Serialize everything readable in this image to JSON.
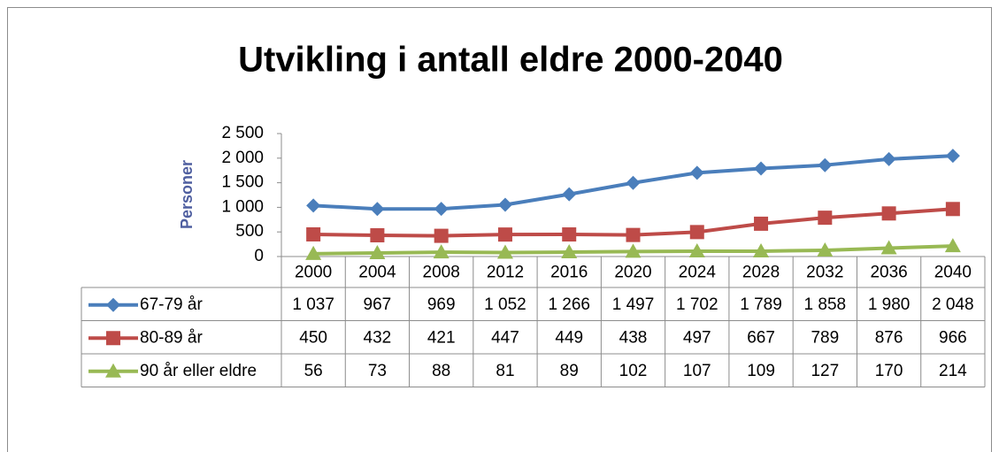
{
  "chart_data": {
    "type": "line",
    "title": "Utvikling i antall eldre 2000-2040",
    "y_label": "Personer",
    "categories": [
      "2000",
      "2004",
      "2008",
      "2012",
      "2016",
      "2020",
      "2024",
      "2028",
      "2032",
      "2036",
      "2040"
    ],
    "series": [
      {
        "name": "67-79 år",
        "color": "#4a7ebb",
        "marker": "diamond",
        "values": [
          1037,
          967,
          969,
          1052,
          1266,
          1497,
          1702,
          1789,
          1858,
          1980,
          2048
        ],
        "value_labels": [
          "1 037",
          "967",
          "969",
          "1 052",
          "1 266",
          "1 497",
          "1 702",
          "1 789",
          "1 858",
          "1 980",
          "2 048"
        ]
      },
      {
        "name": "80-89 år",
        "color": "#be4b48",
        "marker": "square",
        "values": [
          450,
          432,
          421,
          447,
          449,
          438,
          497,
          667,
          789,
          876,
          966
        ],
        "value_labels": [
          "450",
          "432",
          "421",
          "447",
          "449",
          "438",
          "497",
          "667",
          "789",
          "876",
          "966"
        ]
      },
      {
        "name": "90 år eller eldre",
        "color": "#98b954",
        "marker": "triangle",
        "values": [
          56,
          73,
          88,
          81,
          89,
          102,
          107,
          109,
          127,
          170,
          214
        ],
        "value_labels": [
          "56",
          "73",
          "88",
          "81",
          "89",
          "102",
          "107",
          "109",
          "127",
          "170",
          "214"
        ]
      }
    ],
    "ylim": [
      0,
      2500
    ],
    "yticks": [
      0,
      500,
      {
        "value": 1000,
        "label": "1 000"
      },
      {
        "value": 1500,
        "label": "1 500"
      },
      {
        "value": 2000,
        "label": "2 000"
      },
      {
        "value": 2500,
        "label": "2 500"
      }
    ],
    "grid": false
  }
}
